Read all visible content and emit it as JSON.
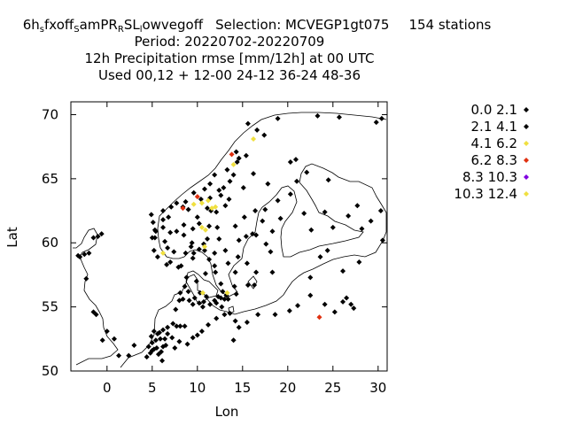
{
  "chart_data": {
    "type": "scatter",
    "title_lines": [
      "6h_s fxoff_S amPR_R SL_l owvegoff   Selection: MCVEGP1gt075    154 stations",
      "Period: 20220702-20220709",
      "12h Precipitation rmse [mm/12h] at  00 UTC",
      "Used  00,12  + 12-00 24-12 36-24 48-36"
    ],
    "title_parts": {
      "exp_base": "6h",
      "exp_s": "s",
      "exp_mid1": "fxoff",
      "exp_S": "S",
      "exp_mid2": "amPR",
      "exp_R": "R",
      "exp_mid3": "SL",
      "exp_l": "l",
      "exp_end": "owvegoff",
      "selection": "Selection: MCVEGP1gt075",
      "stations": "154 stations"
    },
    "xlabel": "Lon",
    "ylabel": "Lat",
    "xlim": [
      -4,
      31
    ],
    "ylim": [
      50,
      71
    ],
    "xticks": [
      0,
      5,
      10,
      15,
      20,
      25,
      30
    ],
    "yticks": [
      50,
      55,
      60,
      65,
      70
    ],
    "legend_position": "right",
    "legend": [
      {
        "label": "0.0 2.1",
        "color": "#000000"
      },
      {
        "label": "2.1 4.1",
        "color": "#000000"
      },
      {
        "label": "4.1 6.2",
        "color": "#f0e040"
      },
      {
        "label": "6.2 8.3",
        "color": "#e03010"
      },
      {
        "label": "8.3 10.3",
        "color": "#8000e0"
      },
      {
        "label": "10.3 12.4",
        "color": "#f0e040"
      }
    ],
    "series": [
      {
        "name": "0.0 2.1",
        "points": [
          [
            -3.2,
            59
          ],
          [
            -3,
            58.9
          ],
          [
            -2.5,
            59.1
          ],
          [
            -2,
            59.2
          ],
          [
            -1.5,
            60.4
          ],
          [
            -1,
            60.5
          ],
          [
            -0.6,
            60.7
          ],
          [
            -2.3,
            57.2
          ],
          [
            -1.5,
            54.6
          ],
          [
            -1.2,
            54.4
          ],
          [
            0,
            53.1
          ],
          [
            -0.5,
            52.4
          ],
          [
            4.6,
            51.9
          ],
          [
            5,
            51.6
          ],
          [
            5.2,
            51.7
          ],
          [
            5.5,
            51.8
          ],
          [
            4.8,
            51.4
          ],
          [
            5.7,
            51.3
          ],
          [
            6,
            51.5
          ],
          [
            6.2,
            51.9
          ],
          [
            6.5,
            52
          ],
          [
            5,
            52.2
          ],
          [
            5.4,
            52.4
          ],
          [
            5.9,
            52.5
          ],
          [
            6.4,
            52.5
          ],
          [
            4.9,
            52.7
          ],
          [
            5.6,
            52.9
          ],
          [
            6.7,
            52.9
          ],
          [
            7.2,
            52.6
          ],
          [
            5.2,
            53.1
          ],
          [
            6.2,
            53.2
          ],
          [
            6.7,
            53.4
          ],
          [
            5.8,
            53
          ],
          [
            7.3,
            53.7
          ],
          [
            7.7,
            53.5
          ],
          [
            8.1,
            53.5
          ],
          [
            8.6,
            53.5
          ],
          [
            8.9,
            52.1
          ],
          [
            8,
            52.3
          ],
          [
            7.5,
            51.8
          ],
          [
            9.5,
            52.6
          ],
          [
            10,
            52.8
          ],
          [
            10.5,
            53.1
          ],
          [
            11.2,
            53.6
          ],
          [
            12.1,
            54.1
          ],
          [
            13,
            54.4
          ],
          [
            13.6,
            54.5
          ],
          [
            14.2,
            53.9
          ],
          [
            15.5,
            53.8
          ],
          [
            16.7,
            54.4
          ],
          [
            18.6,
            54.4
          ],
          [
            20.2,
            54.7
          ],
          [
            21.1,
            55.1
          ],
          [
            22.5,
            55.9
          ],
          [
            24.1,
            55.2
          ],
          [
            25.2,
            54.6
          ],
          [
            26.1,
            55.4
          ],
          [
            26.5,
            55.7
          ],
          [
            27,
            55.2
          ],
          [
            27.3,
            54.9
          ],
          [
            14,
            52.4
          ],
          [
            14.6,
            53.4
          ],
          [
            12.7,
            55
          ],
          [
            11.9,
            55.5
          ],
          [
            12.6,
            55.7
          ],
          [
            10.3,
            56.1
          ],
          [
            9.9,
            57
          ],
          [
            8.6,
            56.6
          ],
          [
            9.1,
            55.5
          ],
          [
            9.5,
            55.2
          ],
          [
            10.6,
            55
          ],
          [
            11.4,
            55.2
          ],
          [
            8.1,
            56.1
          ],
          [
            8.4,
            55.6
          ],
          [
            9,
            56.2
          ],
          [
            10.7,
            55.4
          ],
          [
            9.7,
            55.7
          ],
          [
            10.2,
            55.3
          ],
          [
            11,
            55.8
          ],
          [
            12.1,
            55.3
          ],
          [
            12.3,
            55.8
          ],
          [
            13,
            55.6
          ],
          [
            13.4,
            55.6
          ],
          [
            14.3,
            56
          ],
          [
            13.2,
            55.9
          ],
          [
            12.8,
            56.2
          ],
          [
            14.1,
            56.6
          ],
          [
            12.6,
            56.8
          ],
          [
            12,
            57.7
          ],
          [
            11.9,
            58.2
          ],
          [
            11.3,
            58.7
          ],
          [
            13.4,
            58.4
          ],
          [
            14.2,
            57.7
          ],
          [
            15.6,
            56.7
          ],
          [
            16.3,
            56.7
          ],
          [
            16.5,
            57.7
          ],
          [
            15.5,
            58.4
          ],
          [
            14.5,
            58.9
          ],
          [
            18.3,
            57.7
          ],
          [
            18.1,
            59.3
          ],
          [
            17.6,
            59.9
          ],
          [
            16.5,
            60.6
          ],
          [
            17.2,
            61.7
          ],
          [
            15.4,
            60.5
          ],
          [
            15.2,
            62
          ],
          [
            14.2,
            61.3
          ],
          [
            16.4,
            62.5
          ],
          [
            17.5,
            62.6
          ],
          [
            18.9,
            63.3
          ],
          [
            20.3,
            63.8
          ],
          [
            22.1,
            65.5
          ],
          [
            21,
            64.8
          ],
          [
            20.3,
            66.3
          ],
          [
            20.9,
            66.5
          ],
          [
            9.4,
            60
          ],
          [
            10.7,
            59.9
          ],
          [
            11.1,
            60.3
          ],
          [
            10.8,
            59.4
          ],
          [
            11.9,
            59.2
          ],
          [
            9.6,
            59.2
          ],
          [
            8.2,
            58.2
          ],
          [
            7.9,
            58.1
          ],
          [
            7,
            58.5
          ],
          [
            6.6,
            58.3
          ],
          [
            5.6,
            58.9
          ],
          [
            5.2,
            59.4
          ],
          [
            5,
            60.4
          ],
          [
            5.3,
            60.4
          ],
          [
            5.3,
            61
          ],
          [
            6.2,
            61.2
          ],
          [
            5.1,
            61.6
          ],
          [
            4.9,
            62.2
          ],
          [
            6.8,
            62
          ],
          [
            6.2,
            62.5
          ],
          [
            7.1,
            62.8
          ],
          [
            8.4,
            62.8
          ],
          [
            9,
            62.6
          ],
          [
            10.4,
            63.4
          ],
          [
            11.4,
            63.5
          ],
          [
            12.6,
            63.7
          ],
          [
            12.9,
            64.3
          ],
          [
            13.6,
            64.8
          ],
          [
            14,
            65.3
          ],
          [
            14.4,
            66.3
          ],
          [
            15.4,
            66.8
          ],
          [
            17.4,
            68.4
          ],
          [
            16.6,
            68.8
          ],
          [
            15.6,
            69.3
          ],
          [
            18.9,
            69.7
          ],
          [
            23.3,
            69.9
          ],
          [
            25.7,
            69.8
          ],
          [
            29.8,
            69.4
          ],
          [
            30.4,
            69.7
          ],
          [
            24.5,
            64.9
          ],
          [
            24.1,
            62.4
          ],
          [
            25,
            61.2
          ],
          [
            22.6,
            61
          ],
          [
            21.8,
            62.3
          ],
          [
            28.2,
            61.1
          ],
          [
            27.7,
            62.9
          ],
          [
            29.2,
            61.7
          ],
          [
            26.7,
            62.1
          ],
          [
            30.3,
            62.5
          ],
          [
            30.5,
            60.2
          ],
          [
            27.9,
            58.5
          ],
          [
            24.4,
            59.4
          ],
          [
            23.6,
            58.9
          ],
          [
            26.1,
            57.8
          ],
          [
            22.5,
            57.3
          ],
          [
            10.9,
            57.6
          ],
          [
            8.8,
            57.3
          ],
          [
            7.6,
            54.8
          ],
          [
            8,
            55.5
          ],
          [
            3,
            52
          ],
          [
            2.4,
            51.2
          ],
          [
            4.4,
            51.1
          ],
          [
            6.1,
            50.8
          ],
          [
            1.3,
            51.2
          ],
          [
            0.8,
            52.5
          ],
          [
            12.2,
            61.2
          ],
          [
            11.3,
            61.3
          ],
          [
            10.2,
            61.5
          ],
          [
            9.5,
            61.1
          ],
          [
            8.5,
            61.4
          ],
          [
            7.7,
            60.9
          ],
          [
            7,
            60.8
          ],
          [
            6.4,
            60.1
          ],
          [
            12.4,
            60.3
          ],
          [
            13.1,
            59.4
          ],
          [
            14.6,
            60.2
          ],
          [
            16.1,
            60.7
          ],
          [
            18.3,
            60.9
          ],
          [
            19.2,
            61.9
          ],
          [
            17.8,
            64.6
          ],
          [
            14.6,
            66.6
          ],
          [
            16.2,
            65.4
          ],
          [
            15.1,
            64.3
          ],
          [
            13.5,
            63.4
          ],
          [
            12.1,
            62.4
          ],
          [
            8.7,
            63.2
          ],
          [
            7.7,
            63.1
          ],
          [
            9.6,
            63.9
          ],
          [
            11.4,
            64.6
          ],
          [
            11.9,
            65.3
          ],
          [
            13.3,
            65.7
          ],
          [
            14.3,
            67.1
          ],
          [
            5.4,
            60.9
          ],
          [
            6.2,
            61.8
          ],
          [
            6.7,
            59.6
          ],
          [
            7.4,
            59.3
          ],
          [
            8.7,
            59.2
          ],
          [
            9.5,
            58.8
          ],
          [
            8.5,
            60.6
          ],
          [
            10,
            62
          ],
          [
            11.1,
            62.7
          ],
          [
            12.4,
            64.1
          ],
          [
            10.8,
            64.2
          ],
          [
            13.1,
            62.9
          ],
          [
            9.3,
            59.7
          ],
          [
            10.2,
            59.5
          ],
          [
            11.5,
            62.5
          ]
        ],
        "color": "#000000"
      },
      {
        "name": "4.1 6.2",
        "points": [
          [
            6.2,
            59.2
          ],
          [
            9.6,
            63
          ],
          [
            10.5,
            63.1
          ],
          [
            11.2,
            63.3
          ],
          [
            12,
            62.8
          ],
          [
            11.6,
            62.7
          ],
          [
            10.5,
            61.2
          ],
          [
            10.9,
            61
          ],
          [
            16.2,
            68.1
          ],
          [
            14,
            66.1
          ],
          [
            13.3,
            56.1
          ],
          [
            10.6,
            56.1
          ],
          [
            10.8,
            59.7
          ]
        ],
        "color": "#f0e040"
      },
      {
        "name": "6.2 8.3",
        "points": [
          [
            8.4,
            62.7
          ],
          [
            10,
            63.6
          ],
          [
            13.8,
            66.9
          ],
          [
            23.5,
            54.2
          ]
        ],
        "color": "#e03010"
      }
    ]
  }
}
